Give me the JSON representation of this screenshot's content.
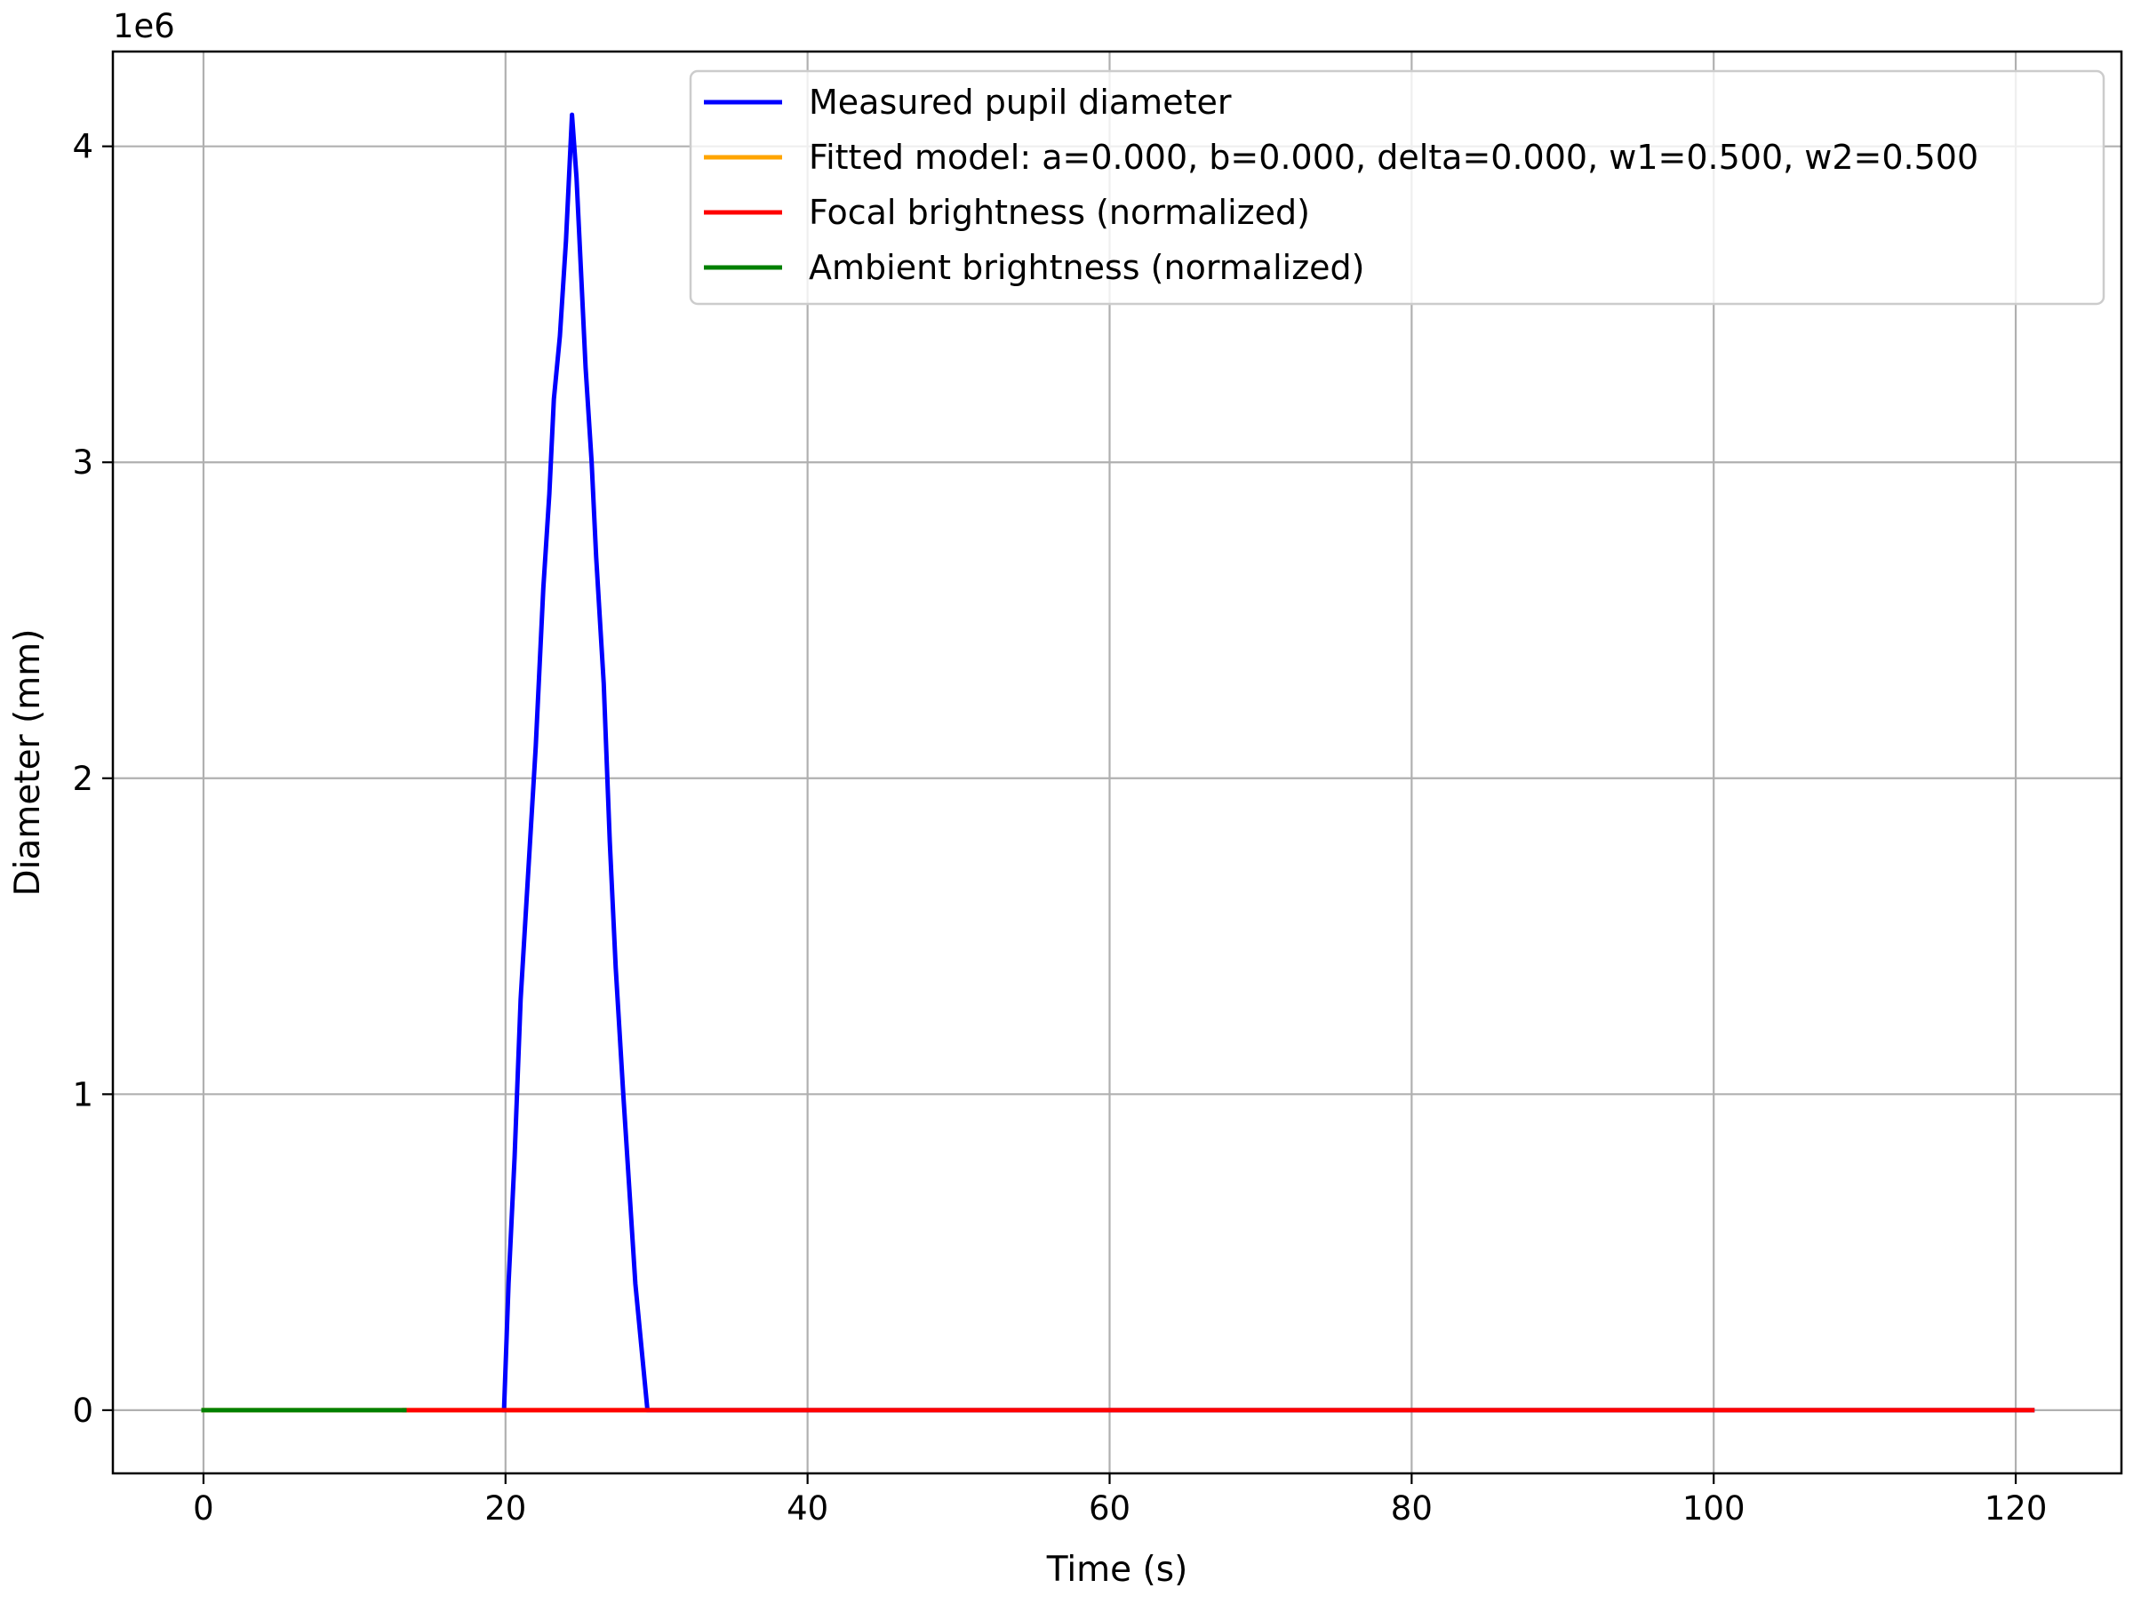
{
  "chart_data": {
    "type": "line",
    "title": "",
    "xlabel": "Time (s)",
    "ylabel": "Diameter (mm)",
    "y_offset_label": "1e6",
    "xlim": [
      -6,
      127
    ],
    "ylim": [
      -0.2,
      4.3
    ],
    "grid": true,
    "legend_position": "top-right",
    "x_ticks": [
      0,
      20,
      40,
      60,
      80,
      100,
      120
    ],
    "x_tick_labels": [
      "0",
      "20",
      "40",
      "60",
      "80",
      "100",
      "120"
    ],
    "y_ticks": [
      0,
      1,
      2,
      3,
      4
    ],
    "y_tick_labels": [
      "0",
      "1",
      "2",
      "3",
      "4"
    ],
    "series": [
      {
        "name": "Measured pupil diameter",
        "color": "#0000ff",
        "x": [
          19.9,
          20.2,
          20.6,
          21.0,
          21.5,
          22.0,
          22.5,
          22.9,
          23.2,
          23.6,
          24.0,
          24.4,
          24.7,
          25.0,
          25.3,
          25.7,
          26.0,
          26.5,
          26.9,
          27.3,
          27.8,
          28.2,
          28.6,
          29.0,
          29.4,
          29.8,
          121.1
        ],
        "y": [
          0.0,
          0.4,
          0.8,
          1.3,
          1.7,
          2.1,
          2.6,
          2.9,
          3.2,
          3.4,
          3.7,
          4.1,
          3.9,
          3.6,
          3.3,
          3.0,
          2.7,
          2.3,
          1.8,
          1.4,
          1.0,
          0.7,
          0.4,
          0.2,
          0.0,
          0.0,
          0.0
        ]
      },
      {
        "name": "Fitted model: a=0.000, b=0.000, delta=0.000, w1=0.500, w2=0.500",
        "color": "#ffa500",
        "x": [
          0,
          121.1
        ],
        "y": [
          0,
          0
        ]
      },
      {
        "name": "Focal brightness (normalized)",
        "color": "#ff0000",
        "x": [
          13.3,
          121.1
        ],
        "y": [
          0,
          0
        ]
      },
      {
        "name": "Ambient brightness (normalized)",
        "color": "#008000",
        "x": [
          0,
          13.3
        ],
        "y": [
          0,
          0
        ]
      }
    ]
  }
}
